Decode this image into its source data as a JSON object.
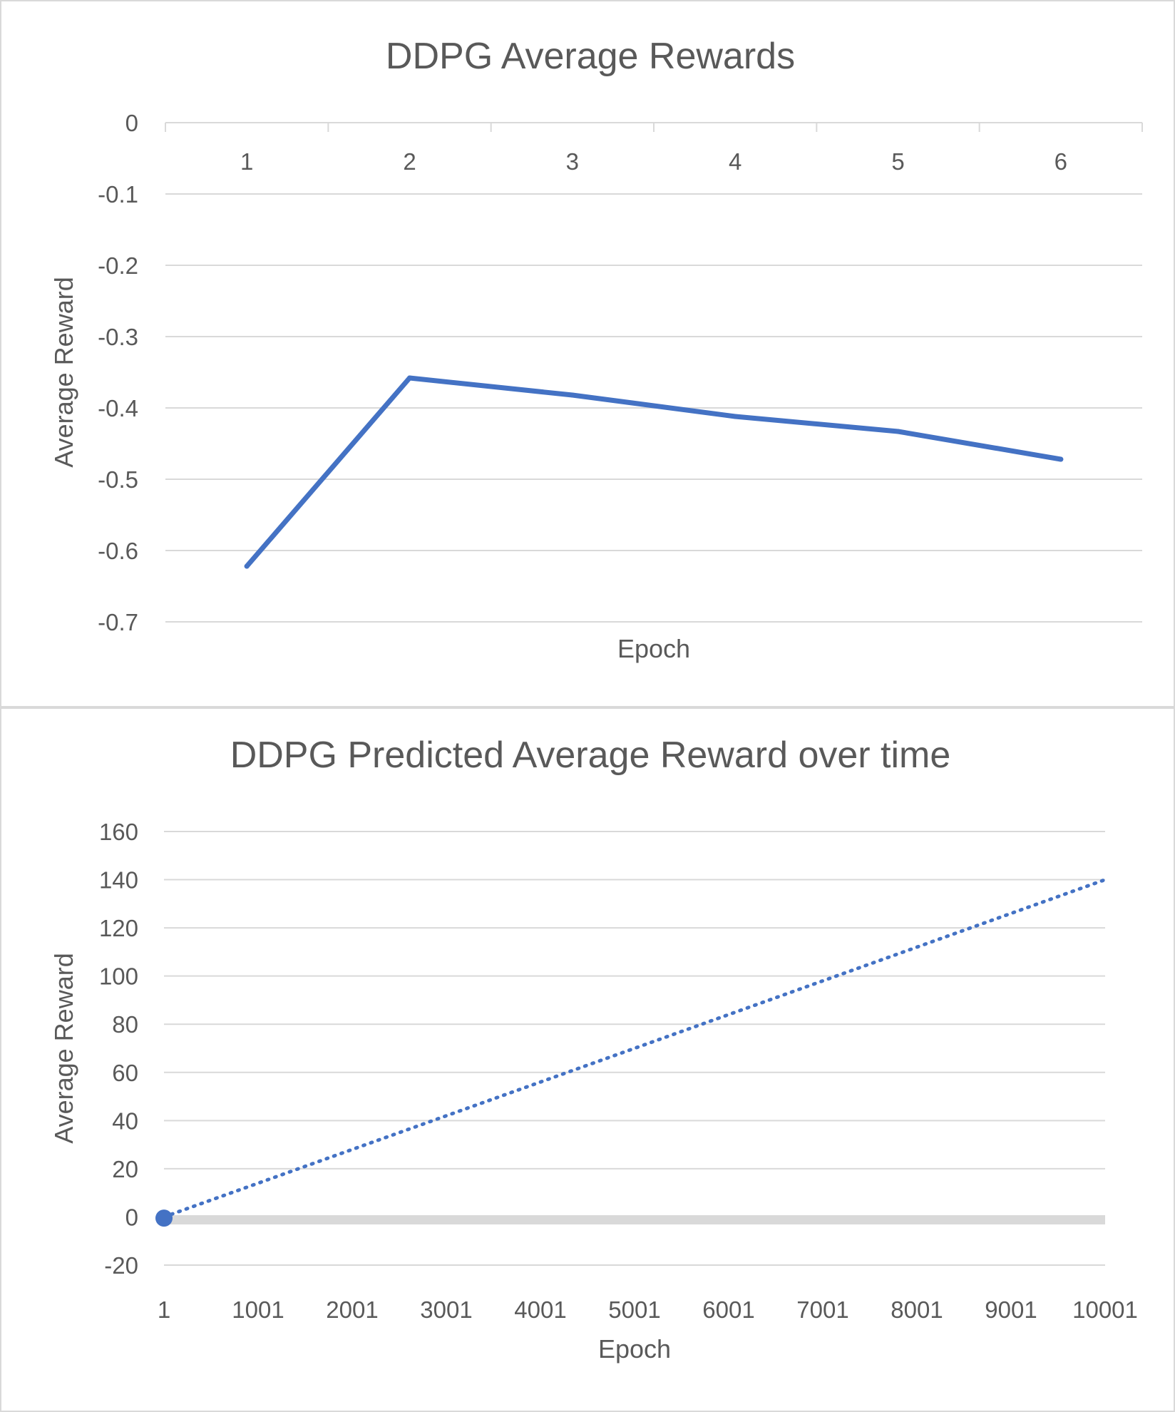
{
  "chart_data": [
    {
      "type": "line",
      "title": "DDPG Average Rewards",
      "xlabel": "Epoch",
      "ylabel": "Average Reward",
      "categories": [
        "1",
        "2",
        "3",
        "4",
        "5",
        "6"
      ],
      "ylim": [
        -0.7,
        0
      ],
      "ytick_labels": [
        "0",
        "-0.1",
        "-0.2",
        "-0.3",
        "-0.4",
        "-0.5",
        "-0.6",
        "-0.7"
      ],
      "x_axis_position": "top",
      "grid": true,
      "series": [
        {
          "values": [
            -0.622,
            -0.358,
            -0.382,
            -0.412,
            -0.433,
            -0.472
          ],
          "color": "#4472c4"
        }
      ]
    },
    {
      "type": "line",
      "title": "DDPG Predicted Average Reward over time",
      "xlabel": "Epoch",
      "ylabel": "Average Reward",
      "xlim": [
        1,
        10001
      ],
      "ylim": [
        -20,
        160
      ],
      "xtick_labels": [
        "1",
        "1001",
        "2001",
        "3001",
        "4001",
        "5001",
        "6001",
        "7001",
        "8001",
        "9001",
        "10001"
      ],
      "ytick_labels": [
        "160",
        "140",
        "120",
        "100",
        "80",
        "60",
        "40",
        "20",
        "0",
        "-20"
      ],
      "grid": true,
      "series": [
        {
          "x": [
            1,
            10001
          ],
          "values": [
            0,
            140
          ],
          "style": "dotted trendline",
          "color": "#4472c4"
        },
        {
          "x": [
            1
          ],
          "values": [
            -0.5
          ],
          "style": "marker",
          "color": "#4472c4"
        }
      ]
    }
  ]
}
